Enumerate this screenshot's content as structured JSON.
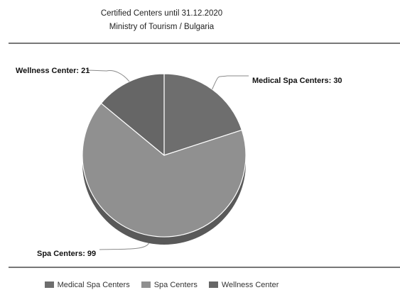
{
  "title_lines": [
    "Certified Centers until 31.12.2020",
    "Ministry of Tourism / Bulgaria"
  ],
  "colors": {
    "medical_spa": "#6e6e6e",
    "spa": "#909090",
    "wellness": "#666666",
    "depth": "#595959",
    "slice_border": "#ffffff",
    "leader": "#8a8a8a",
    "rule": "#777777"
  },
  "chart_data": {
    "type": "pie",
    "title": "Certified Centers until 31.12.2020",
    "subtitle": "Ministry of Tourism / Bulgaria",
    "categories": [
      "Medical Spa Centers",
      "Spa Centers",
      "Wellness Center"
    ],
    "values": [
      30,
      99,
      21
    ],
    "data_labels": [
      "Medical Spa Centers: 30",
      "Spa Centers: 99",
      "Wellness Center: 21"
    ],
    "legend": {
      "entries": [
        "Medical Spa Centers",
        "Spa Centers",
        "Wellness Center"
      ],
      "placement": "bottom"
    },
    "style": "3d"
  }
}
